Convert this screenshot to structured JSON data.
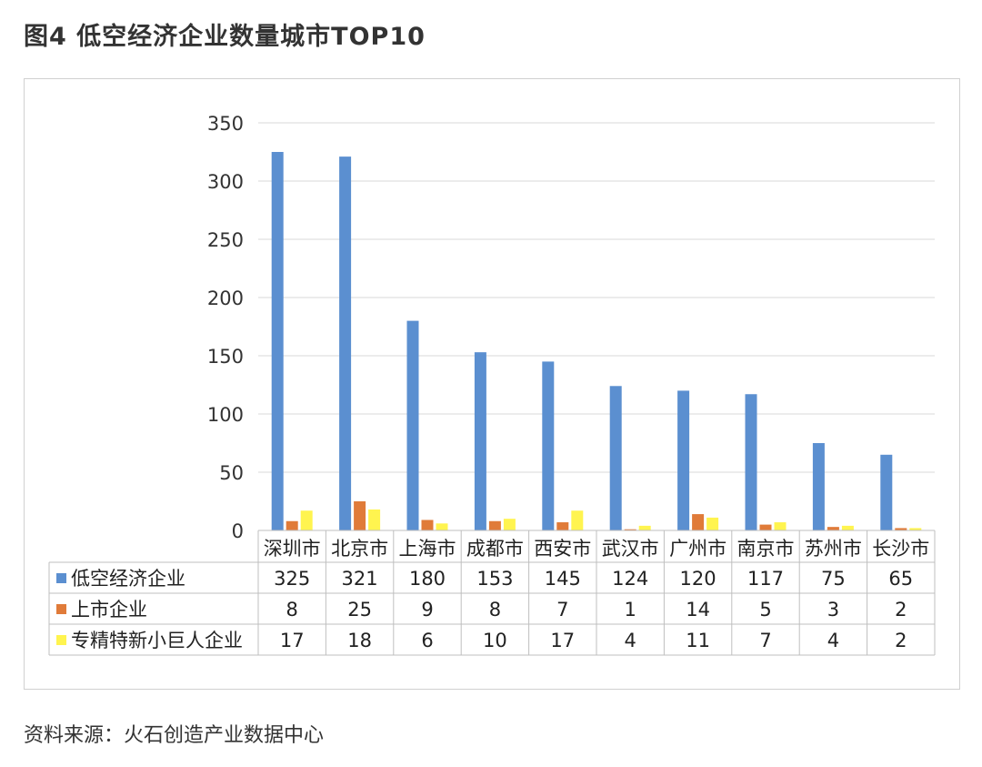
{
  "figure": {
    "title": "图4    低空经济企业数量城市TOP10",
    "source": "资料来源：火石创造产业数据中心"
  },
  "chart_data": {
    "type": "bar",
    "categories": [
      "深圳市",
      "北京市",
      "上海市",
      "成都市",
      "西安市",
      "武汉市",
      "广州市",
      "南京市",
      "苏州市",
      "长沙市"
    ],
    "series": [
      {
        "name": "低空经济企业",
        "color": "#5B8FD0",
        "values": [
          325,
          321,
          180,
          153,
          145,
          124,
          120,
          117,
          75,
          65
        ]
      },
      {
        "name": "上市企业",
        "color": "#E07B39",
        "values": [
          8,
          25,
          9,
          8,
          7,
          1,
          14,
          5,
          3,
          2
        ]
      },
      {
        "name": "专精特新小巨人企业",
        "color": "#FFF44F",
        "values": [
          17,
          18,
          6,
          10,
          17,
          4,
          11,
          7,
          4,
          2
        ]
      }
    ],
    "ylim": [
      0,
      350
    ],
    "yticks": [
      0,
      50,
      100,
      150,
      200,
      250,
      300,
      350
    ],
    "grid": true,
    "legend": "data-table",
    "xlabel": "",
    "ylabel": ""
  }
}
